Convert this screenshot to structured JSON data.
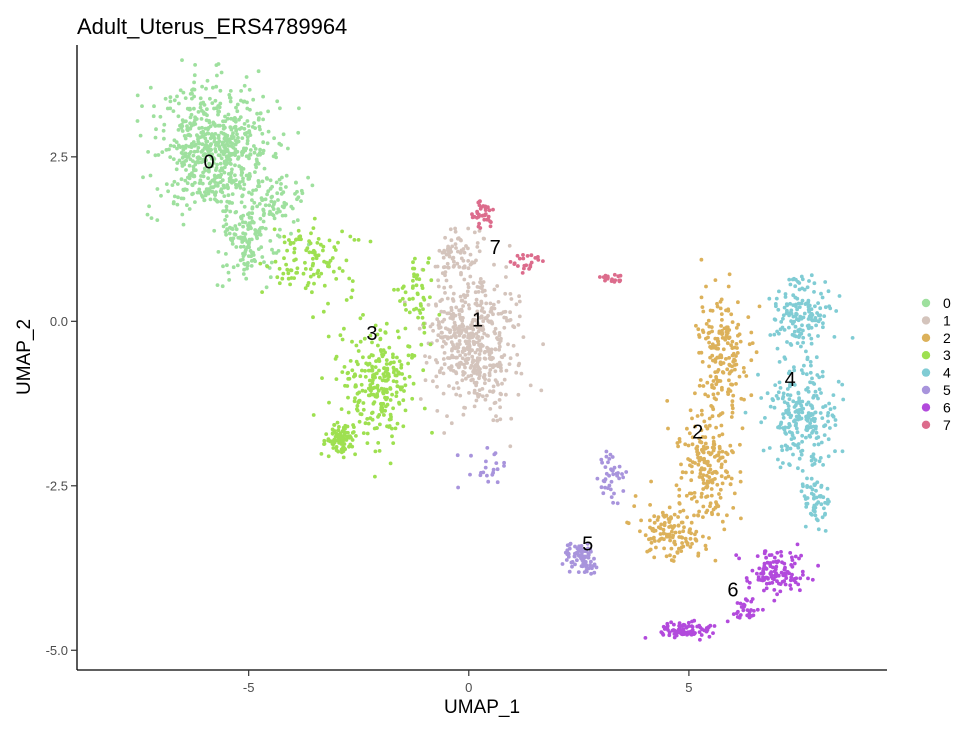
{
  "chart_data": {
    "type": "scatter",
    "title": "Adult_Uterus_ERS4789964",
    "xlabel": "UMAP_1",
    "ylabel": "UMAP_2",
    "xlim": [
      -8.9,
      9.5
    ],
    "ylim": [
      -5.3,
      4.2
    ],
    "x_ticks": [
      -5,
      0,
      5
    ],
    "x_tick_labels": [
      "-5",
      "0",
      "5"
    ],
    "y_ticks": [
      -5,
      -2.5,
      0,
      2.5
    ],
    "y_tick_labels": [
      "-5.0",
      "-2.5",
      "0.0",
      "2.5"
    ],
    "grid": false,
    "legend_position": "right",
    "clusters": [
      {
        "name": "0",
        "color": "#9ee09e",
        "label_pos": [
          -5.9,
          2.4
        ],
        "regions": [
          {
            "center": [
              -5.8,
              2.6
            ],
            "spread": [
              1.2,
              0.9
            ],
            "count": 650
          },
          {
            "center": [
              -5.0,
              1.2
            ],
            "spread": [
              0.6,
              0.5
            ],
            "count": 130
          },
          {
            "center": [
              -4.4,
              1.8
            ],
            "spread": [
              0.6,
              0.5
            ],
            "count": 70
          }
        ]
      },
      {
        "name": "1",
        "color": "#d4c4bc",
        "label_pos": [
          0.2,
          0.0
        ],
        "regions": [
          {
            "center": [
              0.1,
              -0.3
            ],
            "spread": [
              0.9,
              1.0
            ],
            "count": 520
          },
          {
            "center": [
              -0.3,
              1.0
            ],
            "spread": [
              0.5,
              0.3
            ],
            "count": 60
          }
        ]
      },
      {
        "name": "2",
        "color": "#dcb15a",
        "label_pos": [
          5.2,
          -1.7
        ],
        "regions": [
          {
            "center": [
              5.8,
              -0.5
            ],
            "spread": [
              0.6,
              0.8
            ],
            "count": 180
          },
          {
            "center": [
              5.4,
              -2.2
            ],
            "spread": [
              0.6,
              0.8
            ],
            "count": 200
          },
          {
            "center": [
              4.6,
              -3.2
            ],
            "spread": [
              0.7,
              0.4
            ],
            "count": 130
          }
        ]
      },
      {
        "name": "3",
        "color": "#9ee050",
        "label_pos": [
          -2.2,
          -0.2
        ],
        "regions": [
          {
            "center": [
              -2.0,
              -1.0
            ],
            "spread": [
              0.8,
              0.8
            ],
            "count": 260
          },
          {
            "center": [
              -2.9,
              -1.8
            ],
            "spread": [
              0.3,
              0.2
            ],
            "count": 90
          },
          {
            "center": [
              -3.6,
              0.9
            ],
            "spread": [
              0.9,
              0.5
            ],
            "count": 110
          },
          {
            "center": [
              -1.2,
              0.4
            ],
            "spread": [
              0.4,
              0.6
            ],
            "count": 50
          }
        ]
      },
      {
        "name": "4",
        "color": "#80ccd4",
        "label_pos": [
          7.3,
          -0.9
        ],
        "regions": [
          {
            "center": [
              7.6,
              0.1
            ],
            "spread": [
              0.6,
              0.5
            ],
            "count": 150
          },
          {
            "center": [
              7.6,
              -1.4
            ],
            "spread": [
              0.7,
              0.7
            ],
            "count": 230
          },
          {
            "center": [
              7.9,
              -2.7
            ],
            "spread": [
              0.3,
              0.4
            ],
            "count": 60
          }
        ]
      },
      {
        "name": "5",
        "color": "#a894dc",
        "label_pos": [
          2.7,
          -3.4
        ],
        "regions": [
          {
            "center": [
              2.5,
              -3.6
            ],
            "spread": [
              0.4,
              0.2
            ],
            "count": 80
          },
          {
            "center": [
              3.2,
              -2.4
            ],
            "spread": [
              0.3,
              0.3
            ],
            "count": 40
          },
          {
            "center": [
              0.5,
              -2.3
            ],
            "spread": [
              0.5,
              0.3
            ],
            "count": 22
          }
        ]
      },
      {
        "name": "6",
        "color": "#b24adc",
        "label_pos": [
          6.0,
          -4.1
        ],
        "regions": [
          {
            "center": [
              7.0,
              -3.8
            ],
            "spread": [
              0.6,
              0.3
            ],
            "count": 120
          },
          {
            "center": [
              5.0,
              -4.7
            ],
            "spread": [
              0.6,
              0.12
            ],
            "count": 80
          },
          {
            "center": [
              6.3,
              -4.4
            ],
            "spread": [
              0.3,
              0.2
            ],
            "count": 30
          }
        ]
      },
      {
        "name": "7",
        "color": "#dc6c8c",
        "label_pos": [
          0.6,
          1.1
        ],
        "regions": [
          {
            "center": [
              0.3,
              1.6
            ],
            "spread": [
              0.25,
              0.22
            ],
            "count": 35
          },
          {
            "center": [
              1.3,
              0.9
            ],
            "spread": [
              0.3,
              0.15
            ],
            "count": 22
          },
          {
            "center": [
              3.3,
              0.65
            ],
            "spread": [
              0.3,
              0.06
            ],
            "count": 18
          }
        ]
      }
    ]
  }
}
